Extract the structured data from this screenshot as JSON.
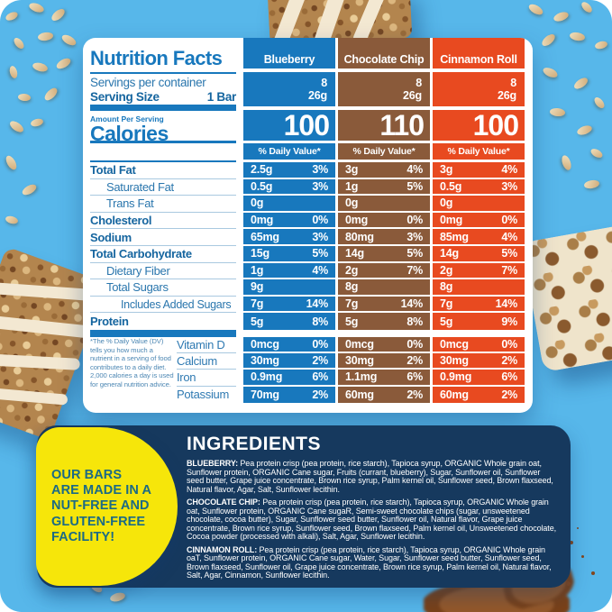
{
  "background": {
    "color": "#57b7ea"
  },
  "nutrition_panel": {
    "title": "Nutrition Facts",
    "servings_per_container_label": "Servings per container",
    "serving_size_label": "Serving Size",
    "serving_size_value": "1 Bar",
    "amount_per_serving_label": "Amount Per Serving",
    "calories_label": "Calories",
    "daily_value_header": "% Daily Value*",
    "footnote": "*The % Daily Value (DV) tells you how much a nutrient in a serving of food contributes to a daily diet. 2,000 calories a day is used for general nutrition advice.",
    "flavors": [
      {
        "name": "Blueberry",
        "color": "#1878bd",
        "servings_per_container": "8",
        "serving_size_g": "26g",
        "calories": "100"
      },
      {
        "name": "Chocolate Chip",
        "color": "#8a5a3a",
        "servings_per_container": "8",
        "serving_size_g": "26g",
        "calories": "110"
      },
      {
        "name": "Cinnamon Roll",
        "color": "#e84a20",
        "servings_per_container": "8",
        "serving_size_g": "26g",
        "calories": "100"
      }
    ],
    "nutrients": [
      {
        "label": "Total Fat",
        "style": "bold",
        "indent": 0,
        "values": [
          {
            "amount": "2.5g",
            "dv": "3%"
          },
          {
            "amount": "3g",
            "dv": "4%"
          },
          {
            "amount": "3g",
            "dv": "4%"
          }
        ]
      },
      {
        "label": "Saturated Fat",
        "style": "regular",
        "indent": 1,
        "values": [
          {
            "amount": "0.5g",
            "dv": "3%"
          },
          {
            "amount": "1g",
            "dv": "5%"
          },
          {
            "amount": "0.5g",
            "dv": "3%"
          }
        ]
      },
      {
        "label": "Trans Fat",
        "style": "regular",
        "indent": 1,
        "values": [
          {
            "amount": "0g",
            "dv": ""
          },
          {
            "amount": "0g",
            "dv": ""
          },
          {
            "amount": "0g",
            "dv": ""
          }
        ]
      },
      {
        "label": "Cholesterol",
        "style": "bold",
        "indent": 0,
        "values": [
          {
            "amount": "0mg",
            "dv": "0%"
          },
          {
            "amount": "0mg",
            "dv": "0%"
          },
          {
            "amount": "0mg",
            "dv": "0%"
          }
        ]
      },
      {
        "label": "Sodium",
        "style": "bold",
        "indent": 0,
        "values": [
          {
            "amount": "65mg",
            "dv": "3%"
          },
          {
            "amount": "80mg",
            "dv": "3%"
          },
          {
            "amount": "85mg",
            "dv": "4%"
          }
        ]
      },
      {
        "label": "Total Carbohydrate",
        "style": "bold",
        "indent": 0,
        "values": [
          {
            "amount": "15g",
            "dv": "5%"
          },
          {
            "amount": "14g",
            "dv": "5%"
          },
          {
            "amount": "14g",
            "dv": "5%"
          }
        ]
      },
      {
        "label": "Dietary Fiber",
        "style": "regular",
        "indent": 1,
        "values": [
          {
            "amount": "1g",
            "dv": "4%"
          },
          {
            "amount": "2g",
            "dv": "7%"
          },
          {
            "amount": "2g",
            "dv": "7%"
          }
        ]
      },
      {
        "label": "Total Sugars",
        "style": "regular",
        "indent": 1,
        "values": [
          {
            "amount": "9g",
            "dv": ""
          },
          {
            "amount": "8g",
            "dv": ""
          },
          {
            "amount": "8g",
            "dv": ""
          }
        ]
      },
      {
        "label": "Includes Added Sugars",
        "style": "regular",
        "indent": 2,
        "values": [
          {
            "amount": "7g",
            "dv": "14%"
          },
          {
            "amount": "7g",
            "dv": "14%"
          },
          {
            "amount": "7g",
            "dv": "14%"
          }
        ]
      },
      {
        "label": "Protein",
        "style": "bold",
        "indent": 0,
        "values": [
          {
            "amount": "5g",
            "dv": "8%"
          },
          {
            "amount": "5g",
            "dv": "8%"
          },
          {
            "amount": "5g",
            "dv": "9%"
          }
        ]
      }
    ],
    "micronutrients": [
      {
        "label": "Vitamin D",
        "values": [
          {
            "amount": "0mcg",
            "dv": "0%"
          },
          {
            "amount": "0mcg",
            "dv": "0%"
          },
          {
            "amount": "0mcg",
            "dv": "0%"
          }
        ]
      },
      {
        "label": "Calcium",
        "values": [
          {
            "amount": "30mg",
            "dv": "2%"
          },
          {
            "amount": "30mg",
            "dv": "2%"
          },
          {
            "amount": "30mg",
            "dv": "2%"
          }
        ]
      },
      {
        "label": "Iron",
        "values": [
          {
            "amount": "0.9mg",
            "dv": "6%"
          },
          {
            "amount": "1.1mg",
            "dv": "6%"
          },
          {
            "amount": "0.9mg",
            "dv": "6%"
          }
        ]
      },
      {
        "label": "Potassium",
        "values": [
          {
            "amount": "70mg",
            "dv": "2%"
          },
          {
            "amount": "60mg",
            "dv": "2%"
          },
          {
            "amount": "60mg",
            "dv": "2%"
          }
        ]
      }
    ]
  },
  "facility_badge": {
    "background": "#f6e60a",
    "text_color": "#1b6a85",
    "lines": [
      "OUR BARS",
      "ARE MADE IN A",
      "NUT-FREE AND",
      "GLUTEN-FREE",
      "FACILITY!"
    ]
  },
  "ingredients_panel": {
    "background": "#16395e",
    "title": "INGREDIENTS",
    "items": [
      {
        "flavor": "BLUEBERRY:",
        "text": "Pea protein crisp (pea protein, rice starch), Tapioca syrup, ORGANIC Whole grain oat, Sunflower protein, ORGANIC Cane sugar, Fruits (currant, blueberry), Sugar, Sunflower oil, Sunflower seed butter, Grape juice concentrate, Brown rice syrup, Palm kernel oil, Sunflower seed, Brown flaxseed, Natural flavor, Agar, Salt, Sunflower lecithin."
      },
      {
        "flavor": "CHOCOLATE CHIP:",
        "text": "Pea protein crisp (pea protein, rice starch), Tapioca syrup, ORGANIC Whole grain oat, Sunflower protein, ORGANIC Cane sugaR, Semi-sweet chocolate chips (sugar, unsweetened chocolate, cocoa butter), Sugar, Sunflower seed butter, Sunflower oil, Natural flavor, Grape juice concentrate, Brown rice syrup, Sunflower seed, Brown flaxseed, Palm kernel oil, Unsweetened chocolate, Cocoa powder (processed with alkali), Salt, Agar, Sunflower lecithin."
      },
      {
        "flavor": "CINNAMON ROLL:",
        "text": "Pea protein crisp (pea protein, rice starch), Tapioca syrup, ORGANIC Whole grain oaT, Sunflower protein, ORGANIC Cane sugar, Water, Sugar, Sunflower seed butter, Sunflower seed, Brown flaxseed, Sunflower oil, Grape juice concentrate, Brown rice syrup, Palm kernel oil, Natural flavor, Salt, Agar, Cinnamon, Sunflower lecithin."
      }
    ]
  }
}
